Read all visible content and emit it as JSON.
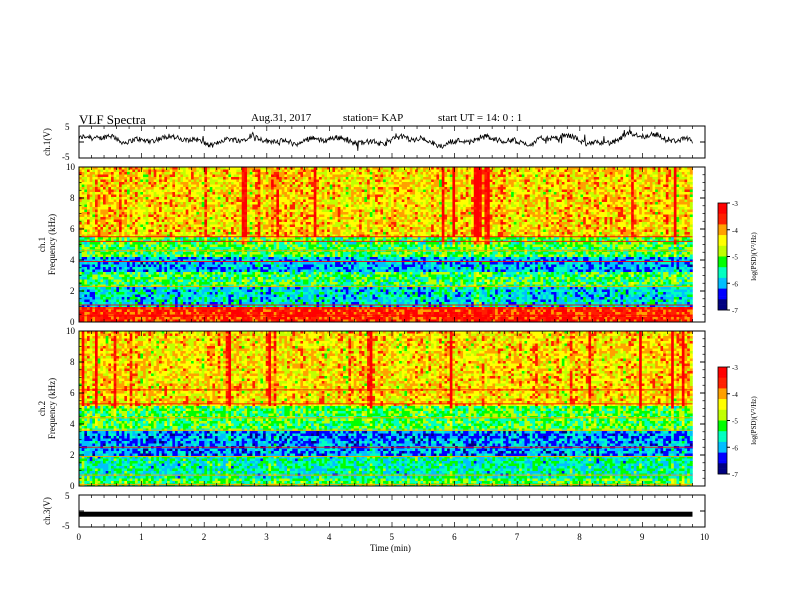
{
  "header": {
    "title": "VLF Spectra",
    "date": "Aug.31, 2017",
    "station": "station= KAP",
    "start": "start UT =  14: 0  : 1"
  },
  "colors": {
    "spectrum": [
      "#000080",
      "#0000ff",
      "#00bfff",
      "#00ffc0",
      "#00ff00",
      "#c0ff00",
      "#ffff00",
      "#ffa000",
      "#ff2000",
      "#ff0000"
    ],
    "trace": "#000000"
  },
  "chart_data": [
    {
      "type": "line",
      "panel": "ch1-waveform",
      "ylabel": "ch.1(V)",
      "ylim": [
        -5,
        5
      ],
      "ytick_labels": [
        "5",
        "-5"
      ],
      "xlim": [
        0,
        10
      ],
      "x_end": 9.8,
      "description_values": {
        "mean_level": 0.5,
        "amplitude_range": [
          -1.5,
          3.5
        ]
      }
    },
    {
      "type": "heatmap",
      "panel": "ch1-spectrogram",
      "ylabel": "ch.1\nFrequency (kHz)",
      "ylim": [
        0,
        10
      ],
      "ytick_labels": [
        "0",
        "2",
        "4",
        "6",
        "8",
        "10"
      ],
      "xlim": [
        0,
        10
      ],
      "x_end": 9.8,
      "colorbar": {
        "label": "log(PSD)(V²/Hz)",
        "range": [
          -7,
          -3
        ],
        "tick_labels": [
          "-3",
          "-4",
          "-5",
          "-6",
          "-7"
        ]
      },
      "bands": [
        {
          "from": 0,
          "to": 1,
          "level": -3.5
        },
        {
          "from": 1,
          "to": 2.2,
          "level": -5.8
        },
        {
          "from": 2.2,
          "to": 3.2,
          "level": -5.3
        },
        {
          "from": 3.2,
          "to": 4.2,
          "level": -6.0
        },
        {
          "from": 4.2,
          "to": 5.5,
          "level": -5.2
        },
        {
          "from": 5.5,
          "to": 10,
          "level": -4.3
        }
      ],
      "lines_khz": [
        0.4,
        0.9,
        1.1,
        2.3,
        3.9,
        4.6,
        5.2,
        5.5
      ]
    },
    {
      "type": "heatmap",
      "panel": "ch2-spectrogram",
      "ylabel": "ch.2\nFrequency (kHz)",
      "ylim": [
        0,
        10
      ],
      "ytick_labels": [
        "0",
        "2",
        "4",
        "6",
        "8",
        "10"
      ],
      "xlim": [
        0,
        10
      ],
      "x_end": 9.8,
      "colorbar": {
        "label": "log(PSD)(V²/Hz)",
        "range": [
          -7,
          -3
        ],
        "tick_labels": [
          "-3",
          "-4",
          "-5",
          "-6",
          "-7"
        ]
      },
      "bands": [
        {
          "from": 0,
          "to": 0.5,
          "level": -5.2
        },
        {
          "from": 0.5,
          "to": 2.0,
          "level": -5.6
        },
        {
          "from": 2.0,
          "to": 3.6,
          "level": -6.1
        },
        {
          "from": 3.6,
          "to": 5.2,
          "level": -5.2
        },
        {
          "from": 5.2,
          "to": 10,
          "level": -4.3
        }
      ],
      "lines_khz": [
        0.1,
        0.7,
        1.9,
        2.5,
        3.6,
        4.4,
        5.3,
        6.2
      ]
    },
    {
      "type": "line",
      "panel": "ch3-waveform",
      "ylabel": "ch.3(V)",
      "ylim": [
        -5,
        5
      ],
      "ytick_labels": [
        "5",
        "-5"
      ],
      "xlim": [
        0,
        10
      ],
      "x_end": 9.8,
      "value": -1.0,
      "xlabel": "Time (min)",
      "xtick_labels": [
        "0",
        "1",
        "2",
        "3",
        "4",
        "5",
        "6",
        "7",
        "8",
        "9",
        "10"
      ]
    }
  ]
}
